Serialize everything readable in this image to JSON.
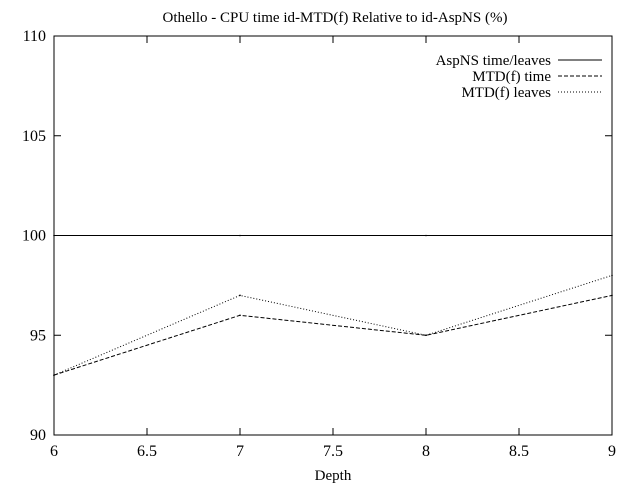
{
  "chart_data": {
    "type": "line",
    "title": "Othello - CPU time id-MTD(f) Relative to id-AspNS (%)",
    "xlabel": "Depth",
    "ylabel": "",
    "xlim": [
      6,
      9
    ],
    "ylim": [
      90,
      110
    ],
    "x_ticks": [
      "6",
      "6.5",
      "7",
      "7.5",
      "8",
      "8.5",
      "9"
    ],
    "y_ticks": [
      "90",
      "95",
      "100",
      "105",
      "110"
    ],
    "grid": false,
    "legend_position": "top-right",
    "x": [
      6,
      7,
      8,
      9
    ],
    "series": [
      {
        "name": "AspNS time/leaves",
        "style": "solid",
        "values": [
          100,
          100,
          100,
          100
        ]
      },
      {
        "name": "MTD(f) time",
        "style": "dashed",
        "values": [
          93,
          96,
          95,
          97
        ]
      },
      {
        "name": "MTD(f) leaves",
        "style": "dotted",
        "values": [
          93,
          97,
          95,
          98
        ]
      }
    ],
    "colors": {
      "line": "#000000",
      "background": "#ffffff"
    }
  }
}
